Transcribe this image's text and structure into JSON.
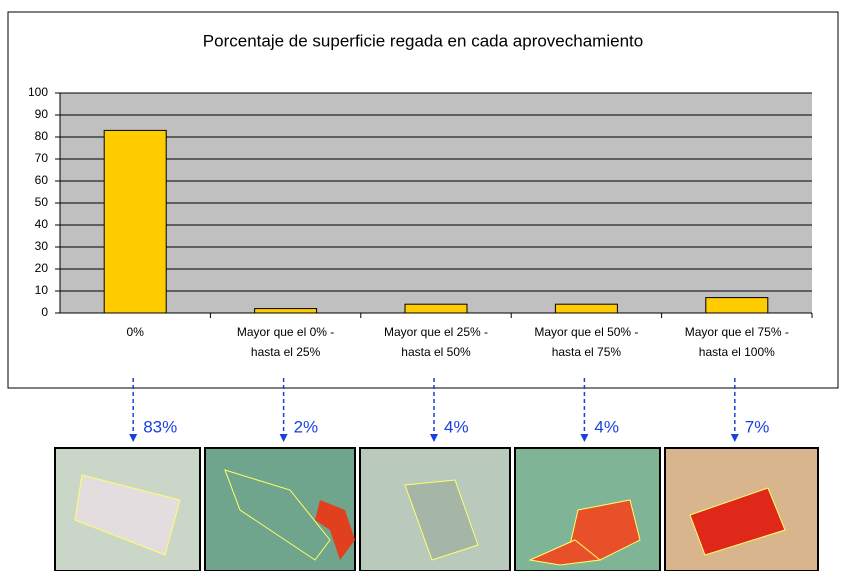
{
  "chart_data": {
    "type": "bar",
    "title": "Porcentaje de superficie regada en cada aprovechamiento",
    "categories": [
      "0%",
      "Mayor que el 0%  -\nhasta el 25%",
      "Mayor que el 25% -\nhasta el 50%",
      "Mayor que el 50% -\nhasta el 75%",
      "Mayor que el 75% -\nhasta el 100%"
    ],
    "values": [
      83,
      2,
      4,
      4,
      7
    ],
    "value_labels": [
      "83%",
      "2%",
      "4%",
      "4%",
      "7%"
    ],
    "color": "#ffcc00",
    "ylim": [
      0,
      100
    ],
    "yticks": [
      0,
      10,
      20,
      30,
      40,
      50,
      60,
      70,
      80,
      90,
      100
    ],
    "grid": true
  }
}
